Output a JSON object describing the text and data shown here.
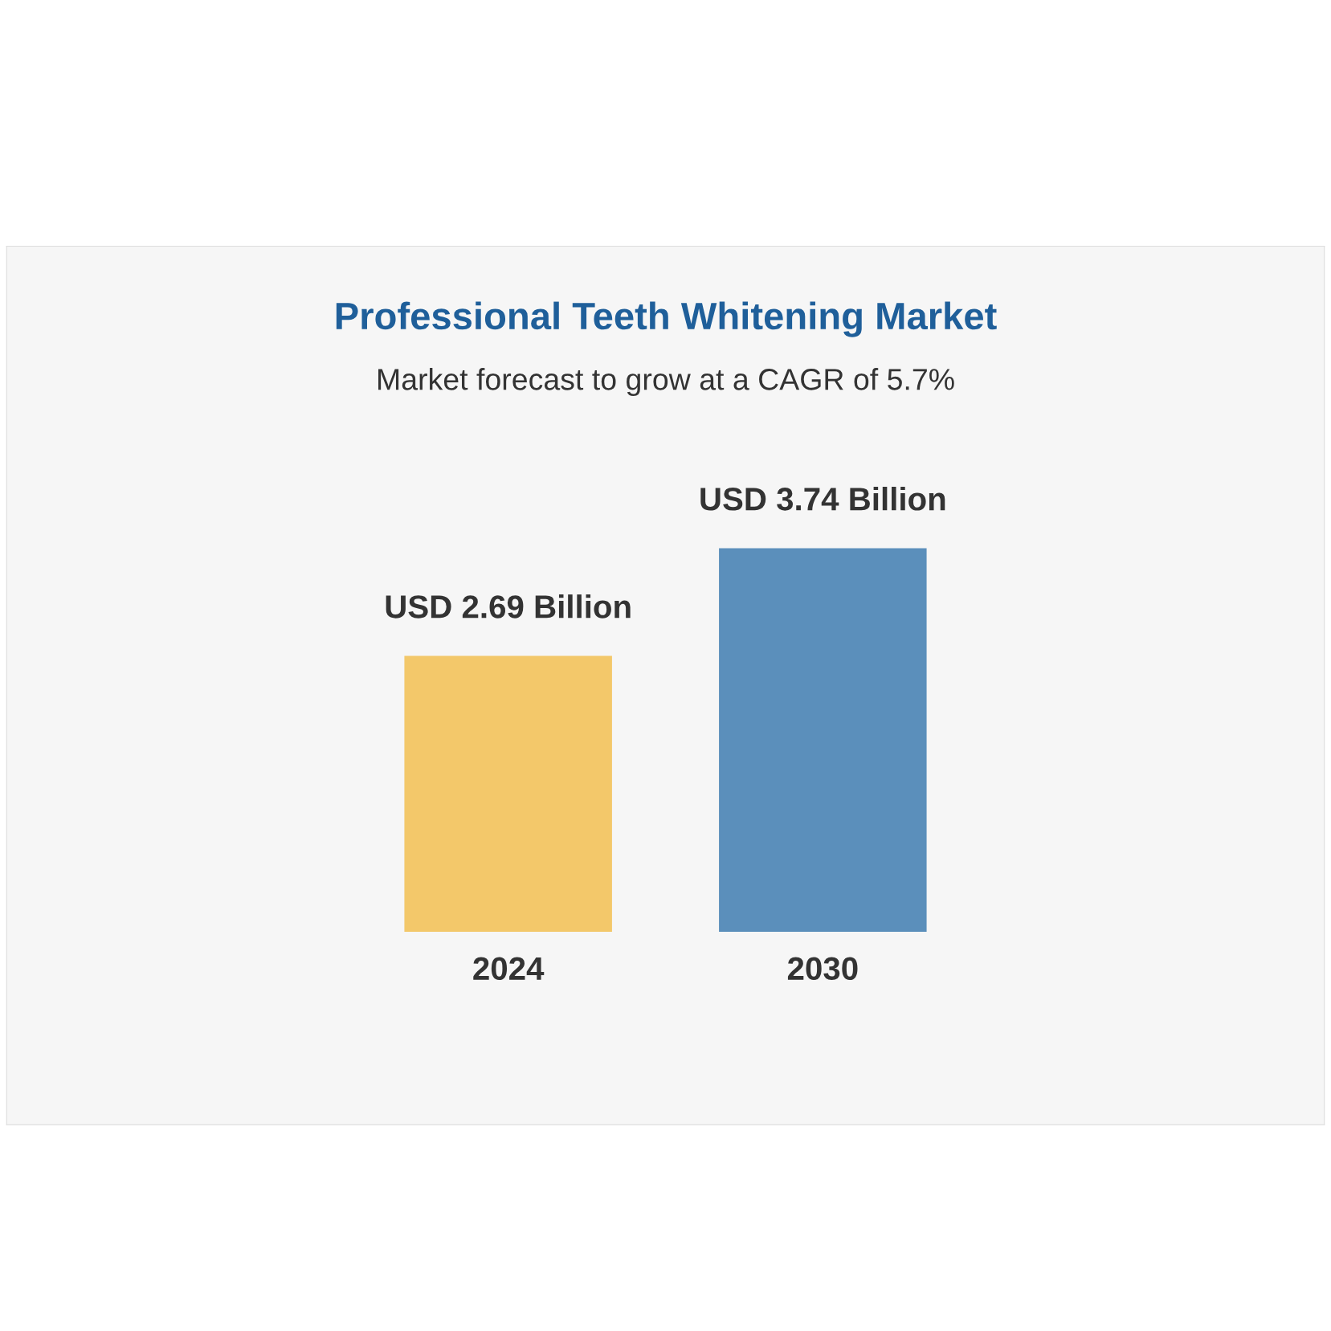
{
  "chart_data": {
    "type": "bar",
    "title": "Professional Teeth Whitening Market",
    "subtitle": "Market forecast to grow at a CAGR of 5.7%",
    "categories": [
      "2024",
      "2030"
    ],
    "values": [
      2.69,
      3.74
    ],
    "colors": [
      "#f3c86a",
      "#5b8fbb"
    ],
    "value_labels": [
      "USD 2.69 Billion",
      "USD 3.74 Billion"
    ]
  }
}
